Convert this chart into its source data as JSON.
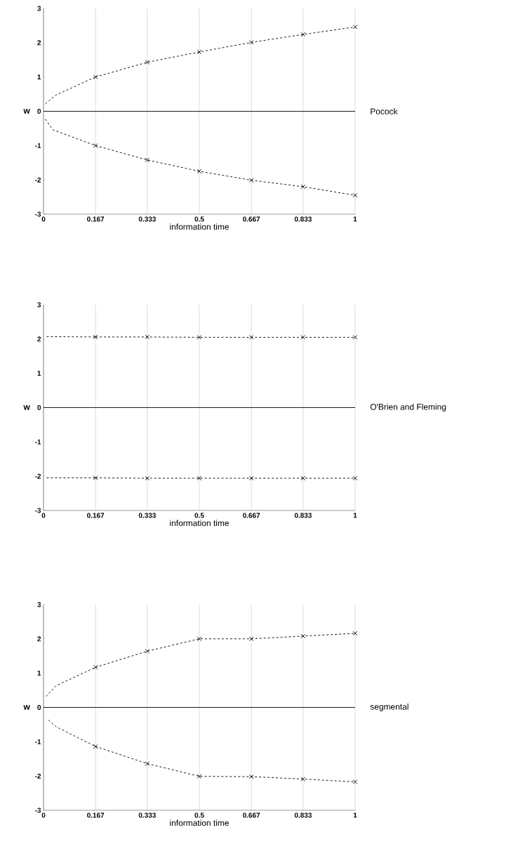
{
  "chart_data": [
    {
      "type": "line",
      "annotations": [
        "Pocock"
      ],
      "xlabel": "information time",
      "ylabel": "w",
      "xlim": [
        0,
        1
      ],
      "ylim": [
        -3,
        3
      ],
      "xticks": [
        0,
        0.167,
        0.333,
        0.5,
        0.667,
        0.833,
        1
      ],
      "yticks": [
        -3,
        -2,
        -1,
        0,
        1,
        2,
        3
      ],
      "grid": "x",
      "ref_lines": [
        {
          "axis": "y",
          "value": 0,
          "color": "#000000",
          "line_style": "solid"
        }
      ],
      "series": [
        {
          "x": [
            0.167,
            0.333,
            0.5,
            0.667,
            0.833,
            1
          ],
          "values": [
            1.0,
            1.43,
            1.73,
            2.01,
            2.24,
            2.46
          ],
          "color": "#000000",
          "marker": "cross",
          "line_style": "dashed"
        },
        {
          "x": [
            0.167,
            0.333,
            0.5,
            0.667,
            0.833,
            1
          ],
          "values": [
            -1.0,
            -1.42,
            -1.75,
            -2.01,
            -2.2,
            -2.45
          ],
          "color": "#000000",
          "marker": "cross",
          "line_style": "dashed"
        },
        {
          "x": [
            0.006,
            0.039,
            0.167
          ],
          "values": [
            0.22,
            0.47,
            1.0
          ],
          "color": "#000000",
          "marker": "none",
          "line_style": "dashed"
        },
        {
          "x": [
            0.006,
            0.03,
            0.167
          ],
          "values": [
            -0.23,
            -0.54,
            -1.0
          ],
          "color": "#000000",
          "marker": "none",
          "line_style": "dashed"
        }
      ]
    },
    {
      "type": "line",
      "annotations": [
        "O'Brien and Fleming"
      ],
      "xlabel": "information time",
      "ylabel": "w",
      "xlim": [
        0,
        1
      ],
      "ylim": [
        -3,
        3
      ],
      "xticks": [
        0,
        0.167,
        0.333,
        0.5,
        0.667,
        0.833,
        1
      ],
      "yticks": [
        -3,
        -2,
        -1,
        0,
        1,
        2,
        3
      ],
      "grid": "x",
      "ref_lines": [
        {
          "axis": "y",
          "value": 0,
          "color": "#000000",
          "line_style": "solid"
        }
      ],
      "series": [
        {
          "x": [
            0.167,
            0.333,
            0.5,
            0.667,
            0.833,
            1
          ],
          "values": [
            2.06,
            2.06,
            2.05,
            2.05,
            2.05,
            2.05
          ],
          "color": "#000000",
          "marker": "cross",
          "line_style": "dashed"
        },
        {
          "x": [
            0.167,
            0.333,
            0.5,
            0.667,
            0.833,
            1
          ],
          "values": [
            -2.05,
            -2.06,
            -2.06,
            -2.06,
            -2.06,
            -2.06
          ],
          "color": "#000000",
          "marker": "cross",
          "line_style": "dashed"
        },
        {
          "x": [
            0.01,
            0.167
          ],
          "values": [
            2.07,
            2.06
          ],
          "color": "#000000",
          "marker": "none",
          "line_style": "dashed"
        },
        {
          "x": [
            0.01,
            0.167
          ],
          "values": [
            -2.05,
            -2.05
          ],
          "color": "#000000",
          "marker": "none",
          "line_style": "dashed"
        }
      ]
    },
    {
      "type": "line",
      "annotations": [
        "segmental"
      ],
      "xlabel": "information time",
      "ylabel": "w",
      "xlim": [
        0,
        1
      ],
      "ylim": [
        -3,
        3
      ],
      "xticks": [
        0,
        0.167,
        0.333,
        0.5,
        0.667,
        0.833,
        1
      ],
      "yticks": [
        -3,
        -2,
        -1,
        0,
        1,
        2,
        3
      ],
      "grid": "x",
      "ref_lines": [
        {
          "axis": "y",
          "value": 0,
          "color": "#000000",
          "line_style": "solid"
        }
      ],
      "series": [
        {
          "x": [
            0.167,
            0.333,
            0.5,
            0.667,
            0.833,
            1
          ],
          "values": [
            1.17,
            1.64,
            2.0,
            2.0,
            2.08,
            2.16
          ],
          "color": "#000000",
          "marker": "cross",
          "line_style": "dashed"
        },
        {
          "x": [
            0.167,
            0.333,
            0.5,
            0.667,
            0.833,
            1
          ],
          "values": [
            -1.14,
            -1.64,
            -2.01,
            -2.02,
            -2.09,
            -2.17
          ],
          "color": "#000000",
          "marker": "cross",
          "line_style": "dashed"
        },
        {
          "x": [
            0.008,
            0.04,
            0.167
          ],
          "values": [
            0.32,
            0.63,
            1.17
          ],
          "color": "#000000",
          "marker": "none",
          "line_style": "dashed"
        },
        {
          "x": [
            0.016,
            0.042,
            0.167
          ],
          "values": [
            -0.37,
            -0.57,
            -1.14
          ],
          "color": "#000000",
          "marker": "none",
          "line_style": "dashed"
        }
      ]
    }
  ]
}
